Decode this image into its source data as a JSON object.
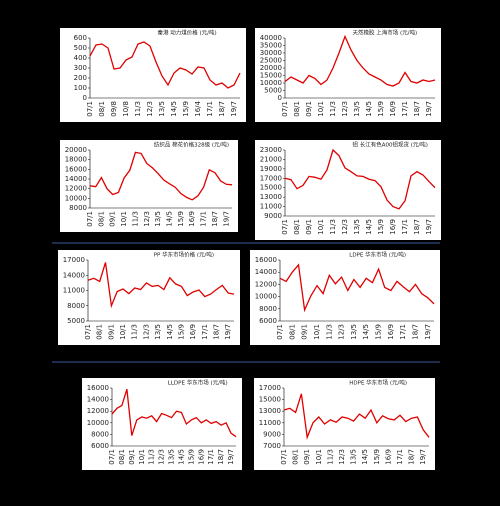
{
  "chart_data": [
    {
      "type": "line",
      "title": "秦港 动力煤价格 (元/吨)",
      "color": "#e00000",
      "categories": [
        "07/1",
        null,
        "08/1",
        null,
        "09/8",
        null,
        "10/8",
        null,
        "11/3",
        null,
        "12/3",
        null,
        "13/5",
        null,
        "14/5",
        null,
        "15/9",
        null,
        "16/4",
        null,
        "17/1",
        null,
        "18/7",
        null,
        "19/7",
        null
      ],
      "values": [
        420,
        530,
        540,
        500,
        290,
        300,
        380,
        410,
        540,
        560,
        520,
        360,
        220,
        130,
        250,
        300,
        280,
        240,
        310,
        300,
        180,
        130,
        150,
        100,
        130,
        250
      ],
      "ylim": [
        0,
        600
      ],
      "yticks": [
        0,
        100,
        200,
        300,
        400,
        500,
        600
      ]
    },
    {
      "type": "line",
      "title": "天然橡胶 上海市场 (元/吨)",
      "color": "#e00000",
      "categories": [
        "07/1",
        null,
        "08/1",
        null,
        "09/1",
        null,
        "10/1",
        null,
        "11/3",
        null,
        "12/3",
        null,
        "13/5",
        null,
        "14/5",
        null,
        "15/9",
        null,
        "16/9",
        null,
        "17/1",
        null,
        "18/7",
        null,
        "19/7",
        null
      ],
      "values": [
        11000,
        14000,
        12000,
        10000,
        15000,
        13000,
        9000,
        12000,
        20000,
        30000,
        41000,
        32000,
        25000,
        20000,
        16000,
        14000,
        12000,
        9000,
        8000,
        10000,
        17000,
        11000,
        10000,
        12000,
        11000,
        12000
      ],
      "ylim": [
        0,
        40000
      ],
      "yticks": [
        0,
        5000,
        10000,
        15000,
        20000,
        25000,
        30000,
        35000,
        40000
      ]
    },
    {
      "type": "line",
      "title": "纺织品 棉花价格328级 (元/吨)",
      "color": "#e00000",
      "categories": [
        "07/1",
        null,
        "08/1",
        null,
        "09/1",
        null,
        "10/1",
        null,
        "11/3",
        null,
        "12/3",
        null,
        "13/5",
        null,
        "14/5",
        null,
        "15/9",
        null,
        "16/9",
        null,
        "17/1",
        null,
        "18/7",
        null,
        "19/7",
        null
      ],
      "values": [
        12600,
        12400,
        14300,
        12000,
        10800,
        11200,
        14200,
        15800,
        19500,
        19300,
        17200,
        16300,
        15100,
        13800,
        13000,
        12300,
        11000,
        10200,
        9700,
        10500,
        12300,
        15900,
        15300,
        13600,
        12900,
        12800
      ],
      "ylim": [
        8000,
        20000
      ],
      "yticks": [
        8000,
        10000,
        12000,
        14000,
        16000,
        18000,
        20000
      ]
    },
    {
      "type": "line",
      "title": "铝 长江有色A00铝现货 (元/吨)",
      "color": "#e00000",
      "categories": [
        "07/1",
        null,
        "08/1",
        null,
        "09/1",
        null,
        "10/1",
        null,
        "11/3",
        null,
        "12/3",
        null,
        "13/5",
        null,
        "14/5",
        null,
        "15/9",
        null,
        "16/9",
        null,
        "17/1",
        null,
        "18/7",
        null,
        "19/7",
        null
      ],
      "values": [
        17000,
        16700,
        14800,
        15500,
        17400,
        17200,
        16800,
        18800,
        23000,
        21800,
        19200,
        18400,
        17500,
        17400,
        16800,
        16500,
        15200,
        12400,
        11000,
        10500,
        12200,
        17500,
        18400,
        17700,
        16300,
        15000
      ],
      "ylim": [
        9000,
        23000
      ],
      "yticks": [
        9000,
        11000,
        13000,
        15000,
        17000,
        19000,
        21000,
        23000
      ]
    },
    {
      "type": "line",
      "title": "PP 华东市场价格 (元/吨)",
      "color": "#e00000",
      "categories": [
        "07/1",
        null,
        "08/1",
        null,
        "09/1",
        null,
        "10/1",
        null,
        "11/3",
        null,
        "12/3",
        null,
        "13/5",
        null,
        "14/5",
        null,
        "15/9",
        null,
        "16/9",
        null,
        "17/1",
        null,
        "18/7",
        null,
        "19/7",
        null
      ],
      "values": [
        13000,
        13400,
        12800,
        16500,
        8000,
        10800,
        11300,
        10400,
        11500,
        11200,
        12500,
        11800,
        12000,
        11200,
        13500,
        12300,
        11800,
        10000,
        10700,
        11100,
        9800,
        10300,
        11200,
        12000,
        10500,
        10300
      ],
      "ylim": [
        5000,
        17000
      ],
      "yticks": [
        5000,
        8000,
        11000,
        14000,
        17000
      ]
    },
    {
      "type": "line",
      "title": "LDPE 华东市场 (元/吨)",
      "color": "#e00000",
      "categories": [
        "07/1",
        null,
        "08/1",
        null,
        "09/1",
        null,
        "10/1",
        null,
        "11/3",
        null,
        "12/3",
        null,
        "13/5",
        null,
        "14/5",
        null,
        "15/9",
        null,
        "16/9",
        null,
        "17/1",
        null,
        "18/7",
        null,
        "19/7",
        null
      ],
      "values": [
        13000,
        12500,
        14000,
        15200,
        7800,
        10100,
        11800,
        10500,
        13500,
        12100,
        13200,
        11000,
        12800,
        11500,
        13000,
        12300,
        14500,
        11500,
        11000,
        12500,
        11600,
        10800,
        12000,
        10500,
        9800,
        8800
      ],
      "ylim": [
        6000,
        16000
      ],
      "yticks": [
        6000,
        8000,
        10000,
        12000,
        14000,
        16000
      ]
    },
    {
      "type": "line",
      "title": "LLDPE 华东市场 (元/吨)",
      "color": "#e00000",
      "categories": [
        "07/1",
        null,
        "08/1",
        null,
        "09/1",
        null,
        "10/1",
        null,
        "11/3",
        null,
        "12/3",
        null,
        "13/5",
        null,
        "14/5",
        null,
        "15/9",
        null,
        "16/9",
        null,
        "17/1",
        null,
        "18/7",
        null,
        "19/7",
        null
      ],
      "values": [
        11500,
        12500,
        13000,
        15800,
        7800,
        10500,
        11000,
        10800,
        11200,
        10200,
        11600,
        11300,
        10900,
        12000,
        11800,
        9800,
        10500,
        10900,
        10000,
        10500,
        9900,
        10200,
        9600,
        10000,
        8200,
        7600
      ],
      "ylim": [
        6000,
        16000
      ],
      "yticks": [
        6000,
        8000,
        10000,
        12000,
        14000,
        16000
      ]
    },
    {
      "type": "line",
      "title": "HDPE 华东市场 (元/吨)",
      "color": "#e00000",
      "categories": [
        "07/1",
        null,
        "08/1",
        null,
        "09/1",
        null,
        "10/1",
        null,
        "11/3",
        null,
        "12/3",
        null,
        "13/5",
        null,
        "14/5",
        null,
        "15/9",
        null,
        "16/9",
        null,
        "17/1",
        null,
        "18/7",
        null,
        "19/7",
        null
      ],
      "values": [
        13200,
        13500,
        12800,
        16000,
        8500,
        11000,
        12000,
        10800,
        11500,
        11100,
        12000,
        11800,
        11300,
        12500,
        11800,
        13200,
        11000,
        12200,
        11700,
        11500,
        12300,
        11200,
        11800,
        12000,
        9800,
        8500
      ],
      "ylim": [
        7000,
        17000
      ],
      "yticks": [
        7000,
        9000,
        11000,
        13000,
        15000,
        17000
      ]
    }
  ]
}
